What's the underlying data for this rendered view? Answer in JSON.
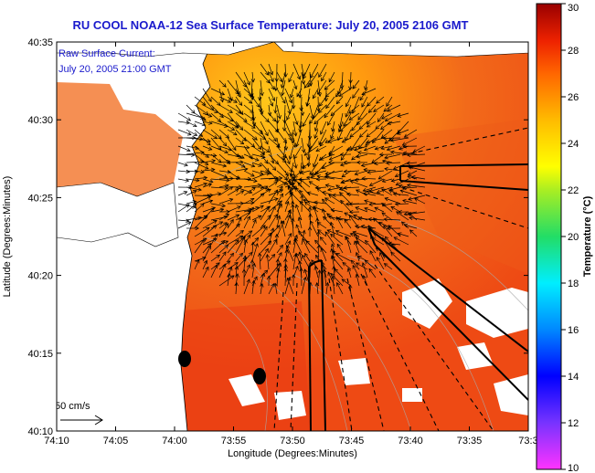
{
  "title": "RU COOL  NOAA-12  Sea Surface Temperature:  July 20, 2005 2106 GMT",
  "annotation": {
    "line1": "Raw Surface Current:",
    "line2": "July 20, 2005 21:00 GMT"
  },
  "scale": {
    "label": "50 cm/s"
  },
  "axes": {
    "xlabel": "Longitude (Degrees:Minutes)",
    "ylabel": "Latitude (Degrees:Minutes)",
    "xticks": [
      "74:10",
      "74:05",
      "74:00",
      "73:55",
      "73:50",
      "73:45",
      "73:40",
      "73:35",
      "73:3"
    ],
    "yticks": [
      "40:35",
      "40:30",
      "40:25",
      "40:20",
      "40:15",
      "40:10"
    ]
  },
  "colorbar": {
    "label": "Temperature (°C)",
    "ticks": [
      "30",
      "28",
      "26",
      "24",
      "22",
      "20",
      "18",
      "16",
      "14",
      "12",
      "10"
    ],
    "min": 10,
    "max": 30
  },
  "chart_data": {
    "type": "heatmap",
    "title": "RU COOL  NOAA-12  Sea Surface Temperature:  July 20, 2005 2106 GMT",
    "xlabel": "Longitude (Degrees:Minutes)",
    "ylabel": "Latitude (Degrees:Minutes)",
    "xlim": [
      "74:10",
      "73:30"
    ],
    "ylim": [
      "40:10",
      "40:35"
    ],
    "value_range": [
      10,
      30
    ],
    "units": "°C",
    "description_values": {
      "offshore_sst_approx": 27,
      "apex_sst_approx": 24
    }
  },
  "colors": {
    "title": "#1a1acc",
    "land": "#ffffff",
    "sea": "#f26a1a",
    "vector": "#000000"
  }
}
